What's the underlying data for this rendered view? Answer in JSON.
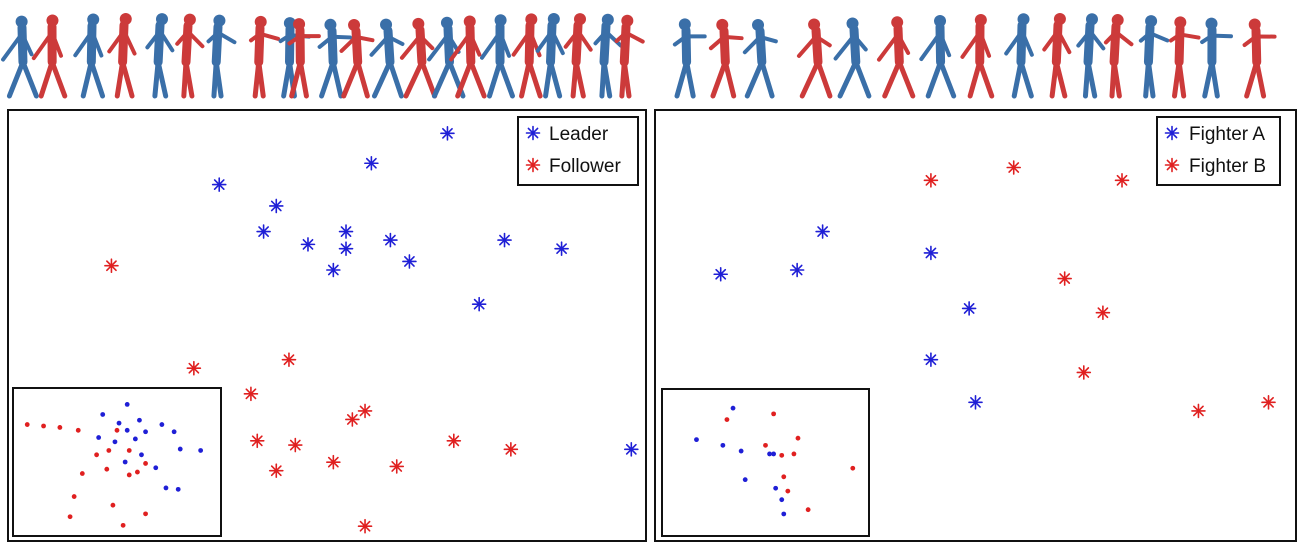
{
  "colors": {
    "blue": "#1f1fd6",
    "red": "#e02020",
    "figure_blue": "#3a6fa8",
    "figure_red": "#cc3a3a",
    "frame": "#111111"
  },
  "chart_data": [
    {
      "type": "scatter",
      "title": "",
      "xlabel": "",
      "ylabel": "",
      "xlim": [
        0,
        100
      ],
      "ylim": [
        0,
        100
      ],
      "grid": false,
      "legend_position": "top-right",
      "marker": "asterisk",
      "series": [
        {
          "name": "Leader",
          "color": "#1f1fd6",
          "points": [
            [
              69,
              95
            ],
            [
              57,
              88
            ],
            [
              33,
              83
            ],
            [
              42,
              78
            ],
            [
              40,
              72
            ],
            [
              53,
              72
            ],
            [
              47,
              69
            ],
            [
              53,
              68
            ],
            [
              60,
              70
            ],
            [
              78,
              70
            ],
            [
              87,
              68
            ],
            [
              63,
              65
            ],
            [
              51,
              63
            ],
            [
              74,
              55
            ],
            [
              98,
              21
            ]
          ]
        },
        {
          "name": "Follower",
          "color": "#e02020",
          "points": [
            [
              16,
              64
            ],
            [
              44,
              42
            ],
            [
              29,
              40
            ],
            [
              38,
              34
            ],
            [
              56,
              30
            ],
            [
              54,
              28
            ],
            [
              39,
              23
            ],
            [
              45,
              22
            ],
            [
              70,
              23
            ],
            [
              79,
              21
            ],
            [
              51,
              18
            ],
            [
              61,
              17
            ],
            [
              42,
              16
            ],
            [
              56,
              3
            ]
          ]
        }
      ],
      "inset": {
        "series": [
          {
            "name": "Leader",
            "color": "#1f1fd6",
            "points": [
              [
                55,
                90
              ],
              [
                43,
                83
              ],
              [
                61,
                79
              ],
              [
                51,
                77
              ],
              [
                72,
                76
              ],
              [
                55,
                72
              ],
              [
                64,
                71
              ],
              [
                78,
                71
              ],
              [
                41,
                67
              ],
              [
                59,
                66
              ],
              [
                49,
                64
              ],
              [
                81,
                59
              ],
              [
                91,
                58
              ],
              [
                62,
                55
              ],
              [
                54,
                50
              ],
              [
                69,
                46
              ],
              [
                74,
                32
              ],
              [
                80,
                31
              ]
            ]
          },
          {
            "name": "Follower",
            "color": "#e02020",
            "points": [
              [
                6,
                76
              ],
              [
                14,
                75
              ],
              [
                22,
                74
              ],
              [
                31,
                72
              ],
              [
                50,
                72
              ],
              [
                56,
                58
              ],
              [
                46,
                58
              ],
              [
                40,
                55
              ],
              [
                64,
                49
              ],
              [
                60,
                43
              ],
              [
                45,
                45
              ],
              [
                33,
                42
              ],
              [
                56,
                41
              ],
              [
                29,
                26
              ],
              [
                48,
                20
              ],
              [
                64,
                14
              ],
              [
                27,
                12
              ],
              [
                53,
                6
              ]
            ]
          }
        ]
      }
    },
    {
      "type": "scatter",
      "title": "",
      "xlabel": "",
      "ylabel": "",
      "xlim": [
        0,
        100
      ],
      "ylim": [
        0,
        100
      ],
      "grid": false,
      "legend_position": "top-right",
      "marker": "asterisk",
      "series": [
        {
          "name": "Fighter A",
          "color": "#1f1fd6",
          "points": [
            [
              26,
              72
            ],
            [
              22,
              63
            ],
            [
              10,
              62
            ],
            [
              43,
              67
            ],
            [
              49,
              54
            ],
            [
              43,
              42
            ],
            [
              50,
              32
            ]
          ]
        },
        {
          "name": "Fighter B",
          "color": "#e02020",
          "points": [
            [
              56,
              87
            ],
            [
              43,
              84
            ],
            [
              73,
              84
            ],
            [
              64,
              61
            ],
            [
              70,
              53
            ],
            [
              67,
              39
            ],
            [
              85,
              30
            ],
            [
              96,
              32
            ]
          ]
        }
      ],
      "inset": {
        "series": [
          {
            "name": "Fighter A",
            "color": "#1f1fd6",
            "points": [
              [
                34,
                88
              ],
              [
                16,
                66
              ],
              [
                29,
                62
              ],
              [
                38,
                58
              ],
              [
                52,
                56
              ],
              [
                54,
                56
              ],
              [
                40,
                38
              ],
              [
                55,
                32
              ],
              [
                58,
                24
              ],
              [
                59,
                14
              ]
            ]
          },
          {
            "name": "Fighter B",
            "color": "#e02020",
            "points": [
              [
                31,
                80
              ],
              [
                54,
                84
              ],
              [
                66,
                67
              ],
              [
                50,
                62
              ],
              [
                58,
                55
              ],
              [
                64,
                56
              ],
              [
                93,
                46
              ],
              [
                59,
                40
              ],
              [
                61,
                30
              ],
              [
                71,
                17
              ]
            ]
          }
        ]
      }
    }
  ]
}
